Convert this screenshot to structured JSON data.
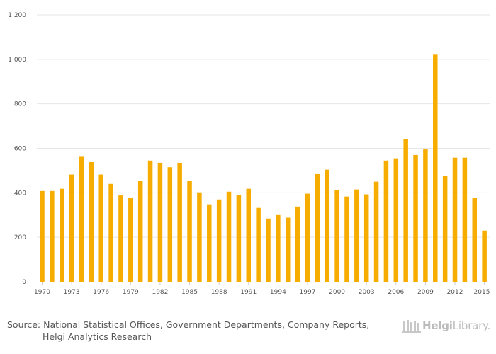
{
  "chart_data": {
    "type": "bar",
    "title": "",
    "xlabel": "",
    "ylabel": "",
    "ylim": [
      0,
      1200
    ],
    "yticks": [
      0,
      200,
      400,
      600,
      800,
      1000,
      1200
    ],
    "ytick_labels": [
      "0",
      "200",
      "400",
      "600",
      "800",
      "1 000",
      "1 200"
    ],
    "bar_color": "#f7ac00",
    "grid_color": "#e6e6e6",
    "x_label_years": [
      "1970",
      "1973",
      "1976",
      "1979",
      "1982",
      "1985",
      "1988",
      "1991",
      "1994",
      "1997",
      "2000",
      "2003",
      "2006",
      "2009",
      "2012",
      "2015"
    ],
    "categories": [
      "1970",
      "1971",
      "1972",
      "1973",
      "1974",
      "1975",
      "1976",
      "1977",
      "1978",
      "1979",
      "1980",
      "1981",
      "1982",
      "1983",
      "1984",
      "1985",
      "1986",
      "1987",
      "1988",
      "1989",
      "1990",
      "1991",
      "1992",
      "1993",
      "1994",
      "1995",
      "1996",
      "1997",
      "1998",
      "1999",
      "2000",
      "2001",
      "2002",
      "2003",
      "2004",
      "2005",
      "2006",
      "2007",
      "2008",
      "2009",
      "2010",
      "2011",
      "2012",
      "2013",
      "2014",
      "2015"
    ],
    "values": [
      408,
      408,
      418,
      482,
      562,
      538,
      482,
      440,
      388,
      378,
      452,
      545,
      535,
      515,
      535,
      455,
      402,
      348,
      370,
      405,
      390,
      418,
      332,
      284,
      303,
      288,
      338,
      396,
      484,
      504,
      412,
      383,
      415,
      393,
      450,
      545,
      555,
      642,
      570,
      595,
      1024,
      475,
      558,
      558,
      378,
      230
    ]
  },
  "footer": {
    "source_label": "Source:",
    "source_text": " National Statistical Offices, Government Departments, Company Reports,",
    "source_cont": "Helgi Analytics Research"
  },
  "logo": {
    "name_bold": "Helgi",
    "name_rest": "Library."
  }
}
